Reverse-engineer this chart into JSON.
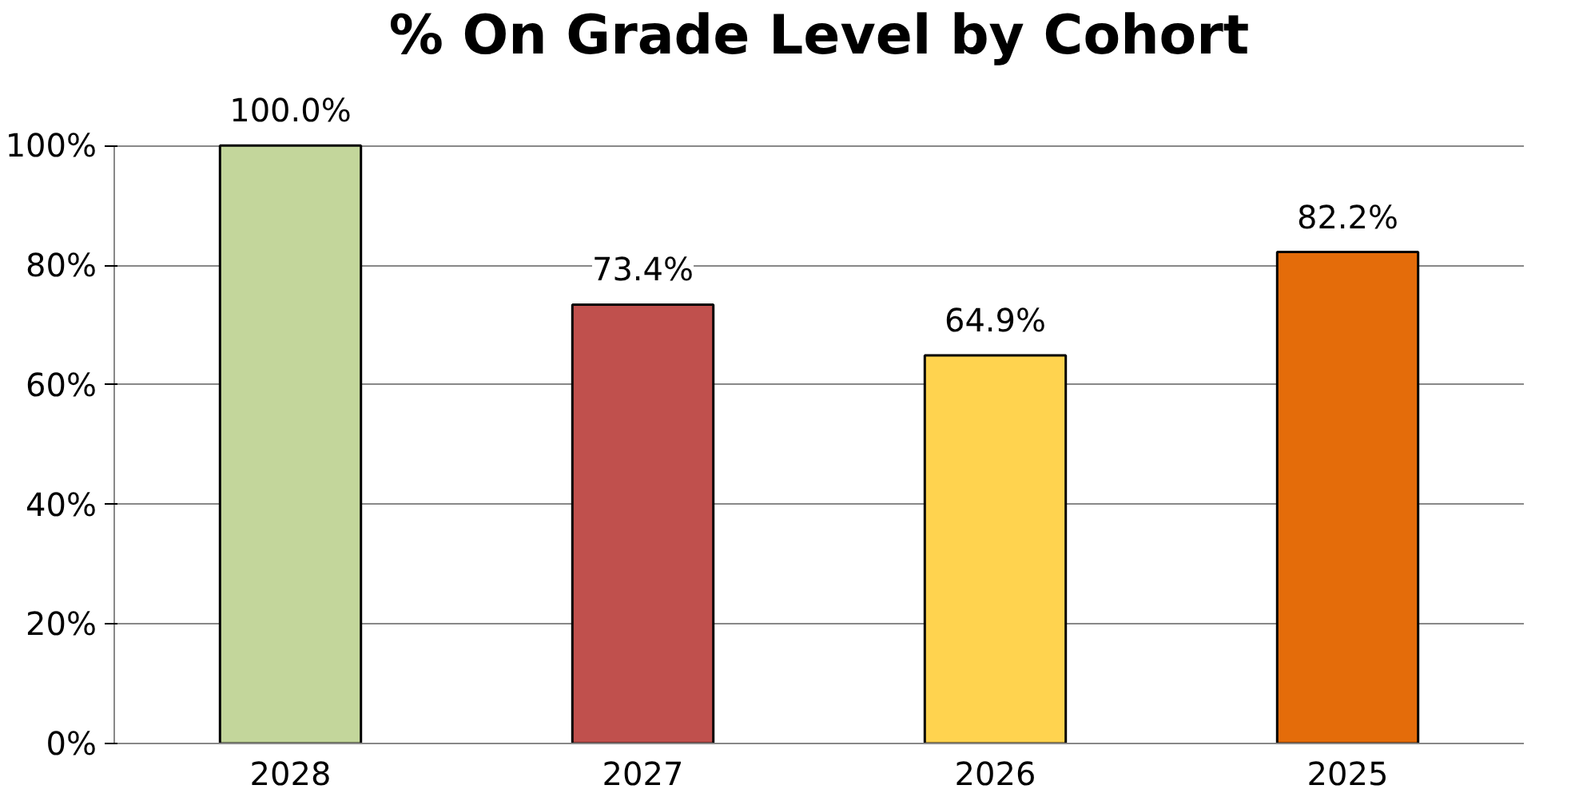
{
  "chart_data": {
    "type": "bar",
    "title": "% On Grade Level by Cohort",
    "categories": [
      "2028",
      "2027",
      "2026",
      "2025"
    ],
    "values": [
      100.0,
      73.4,
      64.9,
      82.2
    ],
    "value_labels": [
      "100.0%",
      "73.4%",
      "64.9%",
      "82.2%"
    ],
    "colors": [
      "#c3d69b",
      "#c0504d",
      "#ffd34f",
      "#e46c0a"
    ],
    "ylim": [
      0,
      100
    ],
    "yticks": [
      {
        "value": 0,
        "label": "0%"
      },
      {
        "value": 20,
        "label": "20%"
      },
      {
        "value": 40,
        "label": "40%"
      },
      {
        "value": 60,
        "label": "60%"
      },
      {
        "value": 80,
        "label": "80%"
      },
      {
        "value": 100,
        "label": "100%"
      }
    ],
    "grid": "y"
  }
}
